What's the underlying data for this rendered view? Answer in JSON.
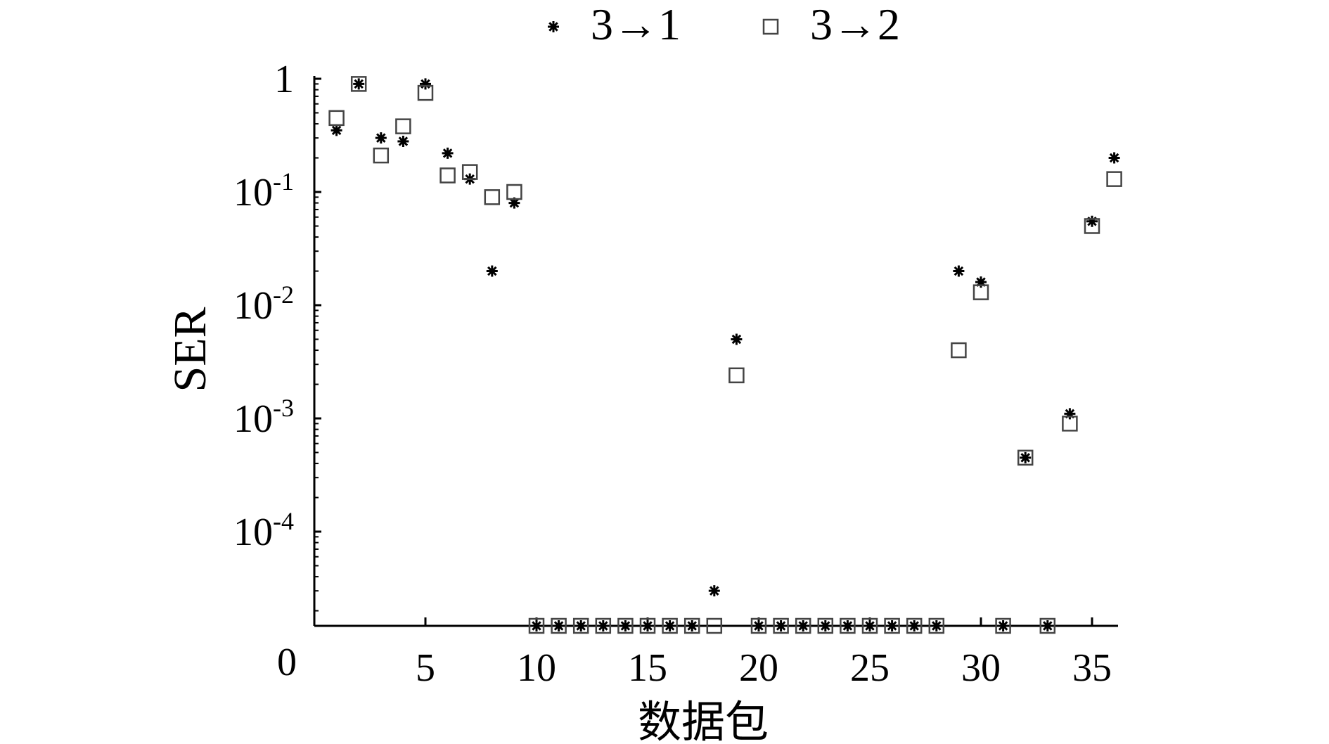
{
  "chart_data": {
    "type": "scatter",
    "xlabel": "数据包",
    "ylabel": "SER",
    "y_scale": "log",
    "y_zero_label": "0",
    "xlim": [
      0,
      36
    ],
    "ylim_log_decades": [
      -5,
      0
    ],
    "x_ticks": [
      5,
      10,
      15,
      20,
      25,
      30,
      35
    ],
    "y_ticks": [
      {
        "base": "1",
        "exp": ""
      },
      {
        "base": "10",
        "exp": "-1"
      },
      {
        "base": "10",
        "exp": "-2"
      },
      {
        "base": "10",
        "exp": "-3"
      },
      {
        "base": "10",
        "exp": "-4"
      }
    ],
    "legend_placement": "top-center",
    "grid": false,
    "series": [
      {
        "name": "3→1",
        "marker": "asterisk",
        "points": [
          [
            1,
            0.35
          ],
          [
            2,
            0.9
          ],
          [
            3,
            0.3
          ],
          [
            4,
            0.28
          ],
          [
            5,
            0.9
          ],
          [
            6,
            0.22
          ],
          [
            7,
            0.13
          ],
          [
            8,
            0.02
          ],
          [
            9,
            0.08
          ],
          [
            10,
            0
          ],
          [
            11,
            0
          ],
          [
            12,
            0
          ],
          [
            13,
            0
          ],
          [
            14,
            0
          ],
          [
            15,
            0
          ],
          [
            16,
            0
          ],
          [
            17,
            0
          ],
          [
            18,
            3e-05
          ],
          [
            19,
            0.005
          ],
          [
            20,
            0
          ],
          [
            21,
            0
          ],
          [
            22,
            0
          ],
          [
            23,
            0
          ],
          [
            24,
            0
          ],
          [
            25,
            0
          ],
          [
            26,
            0
          ],
          [
            27,
            0
          ],
          [
            28,
            0
          ],
          [
            29,
            0.02
          ],
          [
            30,
            0.016
          ],
          [
            31,
            0
          ],
          [
            32,
            0.00045
          ],
          [
            33,
            0
          ],
          [
            34,
            0.0011
          ],
          [
            35,
            0.055
          ],
          [
            36,
            0.2
          ]
        ]
      },
      {
        "name": "3→2",
        "marker": "open-square",
        "points": [
          [
            1,
            0.45
          ],
          [
            2,
            0.9
          ],
          [
            3,
            0.21
          ],
          [
            4,
            0.38
          ],
          [
            5,
            0.75
          ],
          [
            6,
            0.14
          ],
          [
            7,
            0.15
          ],
          [
            8,
            0.09
          ],
          [
            9,
            0.1
          ],
          [
            10,
            0
          ],
          [
            11,
            0
          ],
          [
            12,
            0
          ],
          [
            13,
            0
          ],
          [
            14,
            0
          ],
          [
            15,
            0
          ],
          [
            16,
            0
          ],
          [
            17,
            0
          ],
          [
            18,
            0
          ],
          [
            19,
            0.0024
          ],
          [
            20,
            0
          ],
          [
            21,
            0
          ],
          [
            22,
            0
          ],
          [
            23,
            0
          ],
          [
            24,
            0
          ],
          [
            25,
            0
          ],
          [
            26,
            0
          ],
          [
            27,
            0
          ],
          [
            28,
            0
          ],
          [
            29,
            0.004
          ],
          [
            30,
            0.013
          ],
          [
            31,
            0
          ],
          [
            32,
            0.00045
          ],
          [
            33,
            0
          ],
          [
            34,
            0.0009
          ],
          [
            35,
            0.05
          ],
          [
            36,
            0.13
          ]
        ]
      }
    ]
  }
}
